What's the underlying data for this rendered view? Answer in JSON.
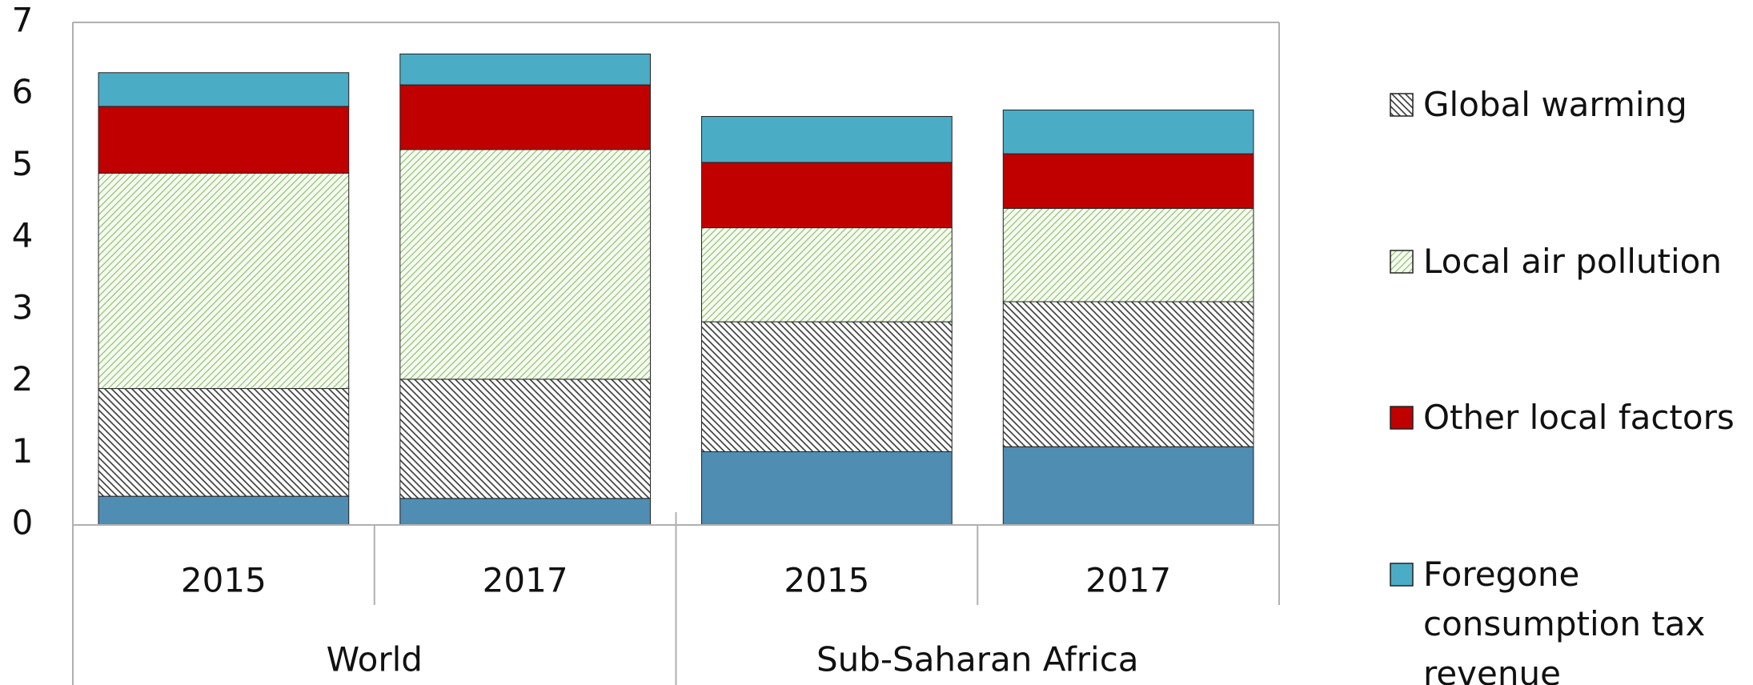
{
  "chart_data": {
    "type": "stacked-bar",
    "categories": [
      "2015",
      "2017",
      "2015",
      "2017"
    ],
    "groups": [
      "World",
      "Sub-Saharan Africa"
    ],
    "series": [
      {
        "name": null,
        "color": "#4f8db3",
        "values": [
          0.4,
          0.37,
          1.02,
          1.09
        ]
      },
      {
        "name": "Global warming",
        "color": "#333333",
        "pattern": "backslash",
        "values": [
          1.5,
          1.66,
          1.81,
          2.02
        ]
      },
      {
        "name": "Local air pollution",
        "color": "#8fbf70",
        "pattern": "slash",
        "values": [
          3.0,
          3.2,
          1.31,
          1.3
        ]
      },
      {
        "name": "Other local factors",
        "color": "#c00000",
        "values": [
          0.93,
          0.9,
          0.91,
          0.76
        ]
      },
      {
        "name": "Foregone consumption tax revenue",
        "color": "#4bacc6",
        "values": [
          0.47,
          0.43,
          0.64,
          0.61
        ]
      }
    ],
    "ylim": [
      0,
      7
    ],
    "yticks": [
      0,
      1,
      2,
      3,
      4,
      5,
      6,
      7
    ],
    "grid": false
  }
}
